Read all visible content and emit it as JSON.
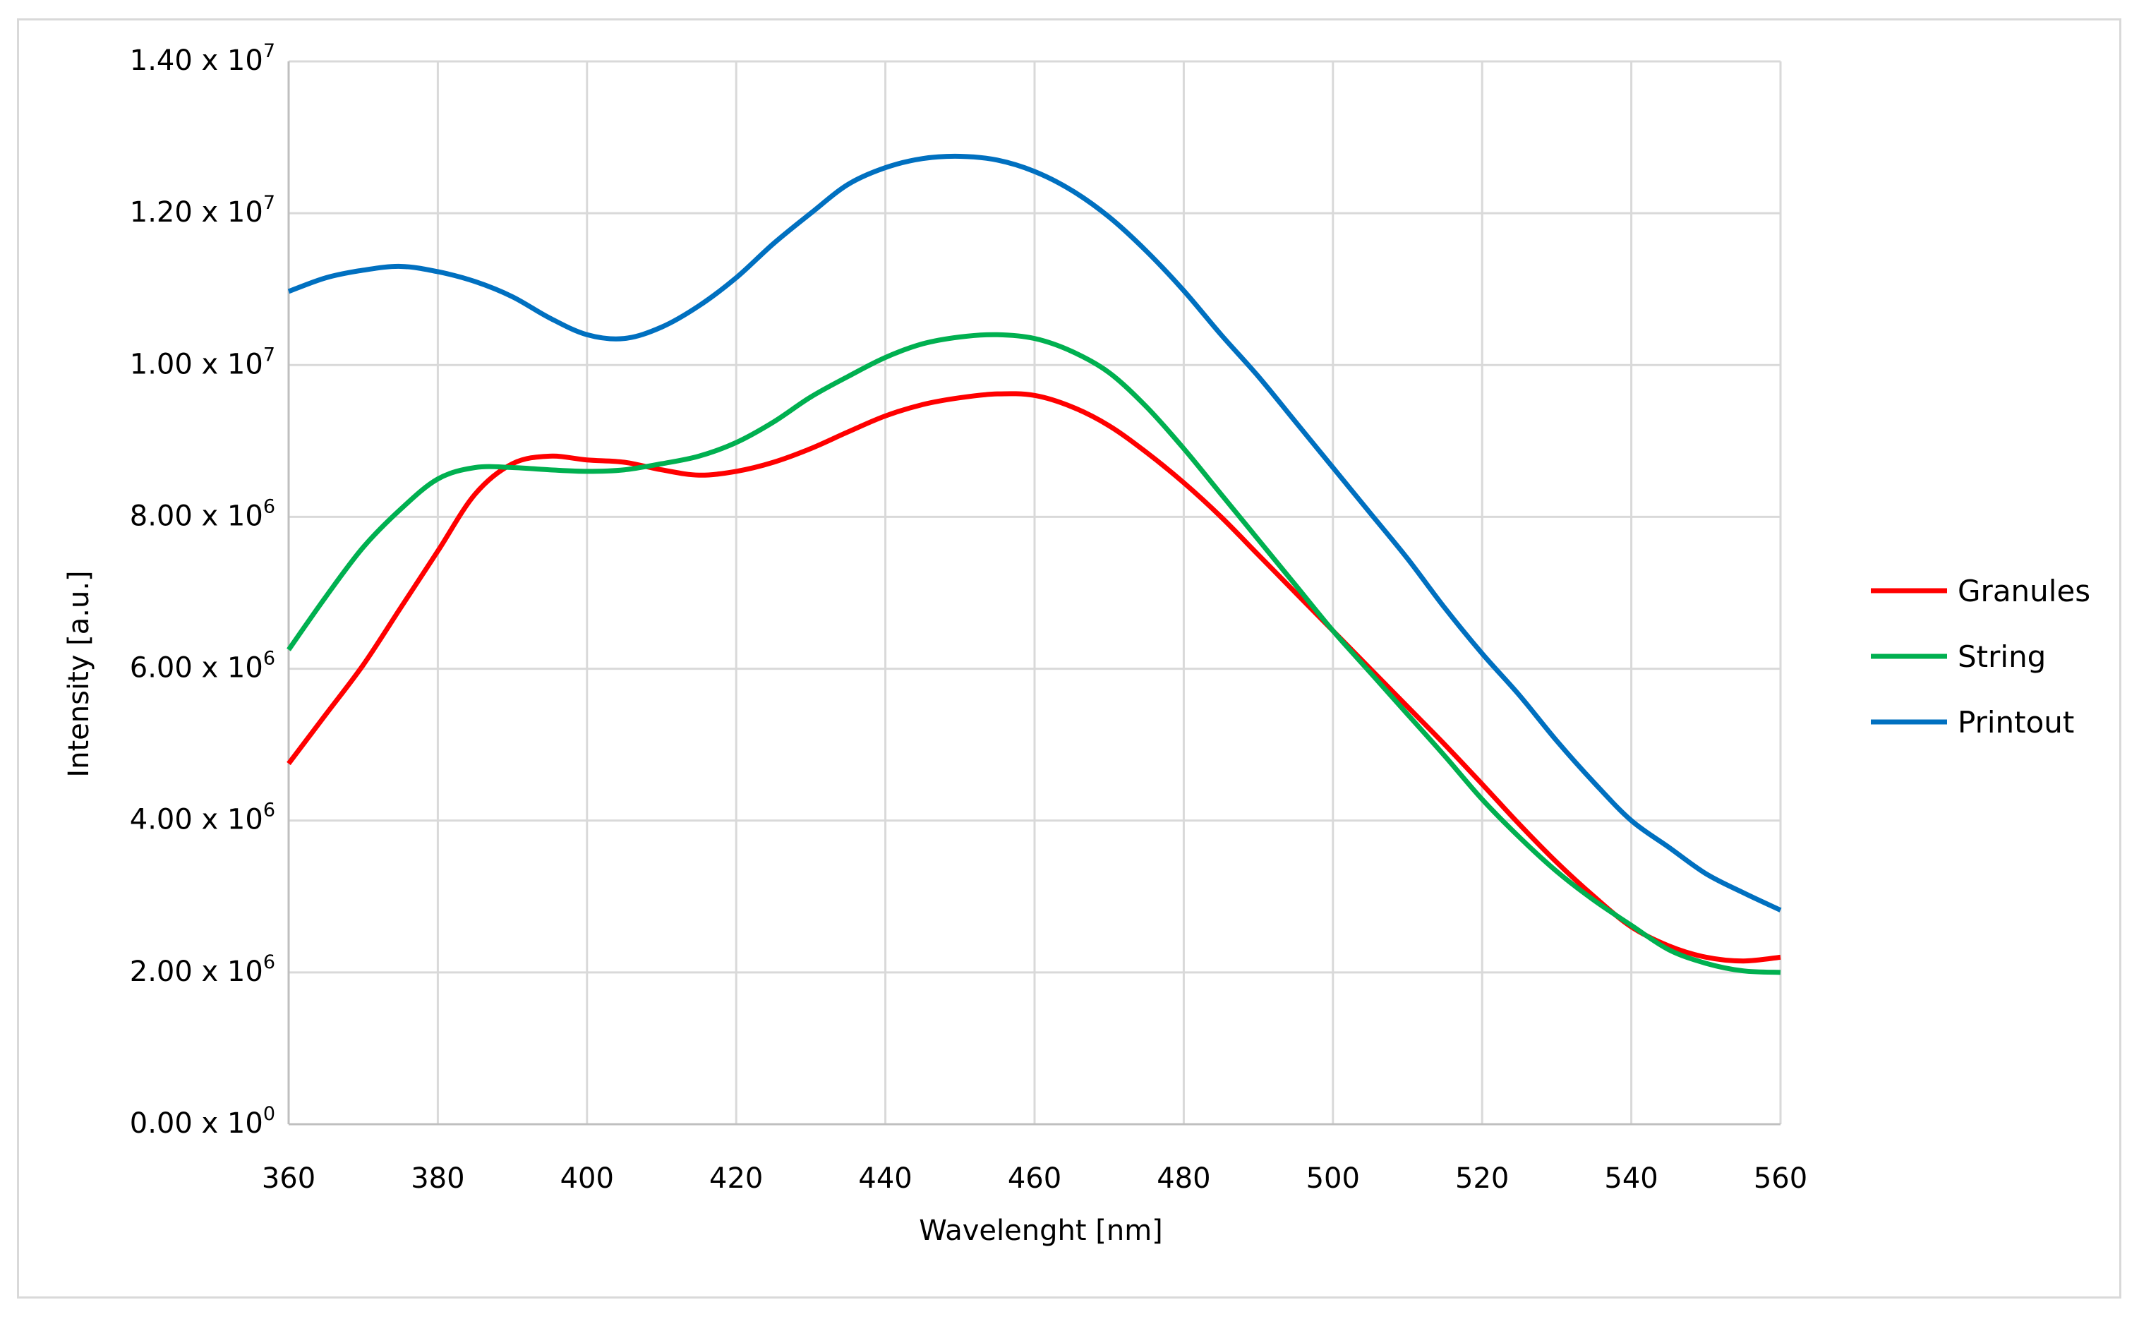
{
  "chart_data": {
    "type": "line",
    "title": "",
    "xlabel": "Wavelenght [nm]",
    "ylabel": "Intensity [a.u.]",
    "xlim": [
      360,
      560
    ],
    "ylim": [
      0,
      14000000
    ],
    "grid": true,
    "legend_position": "right",
    "x_ticks": [
      360,
      380,
      400,
      420,
      440,
      460,
      480,
      500,
      520,
      540,
      560
    ],
    "x_tick_labels": [
      "360",
      "380",
      "400",
      "420",
      "440",
      "460",
      "480",
      "500",
      "520",
      "540",
      "560"
    ],
    "y_ticks": [
      0,
      2000000,
      4000000,
      6000000,
      8000000,
      10000000,
      12000000,
      14000000
    ],
    "y_tick_labels": [
      {
        "mantissa": "0.00 x 10",
        "exp": "0"
      },
      {
        "mantissa": "2.00 x 10",
        "exp": "6"
      },
      {
        "mantissa": "4.00 x 10",
        "exp": "6"
      },
      {
        "mantissa": "6.00 x 10",
        "exp": "6"
      },
      {
        "mantissa": "8.00 x 10",
        "exp": "6"
      },
      {
        "mantissa": "1.00 x 10",
        "exp": "7"
      },
      {
        "mantissa": "1.20 x 10",
        "exp": "7"
      },
      {
        "mantissa": "1.40 x 10",
        "exp": "7"
      }
    ],
    "x": [
      360,
      365,
      370,
      375,
      380,
      385,
      390,
      395,
      400,
      405,
      410,
      415,
      420,
      425,
      430,
      435,
      440,
      445,
      450,
      455,
      460,
      465,
      470,
      475,
      480,
      485,
      490,
      495,
      500,
      505,
      510,
      515,
      520,
      525,
      530,
      535,
      540,
      545,
      550,
      555,
      560
    ],
    "series": [
      {
        "name": "Granules",
        "color": "#ff0000",
        "values": [
          4750000,
          5400000,
          6050000,
          6800000,
          7550000,
          8300000,
          8700000,
          8800000,
          8750000,
          8720000,
          8620000,
          8550000,
          8600000,
          8720000,
          8900000,
          9120000,
          9330000,
          9480000,
          9570000,
          9620000,
          9600000,
          9450000,
          9200000,
          8850000,
          8450000,
          8000000,
          7500000,
          7000000,
          6500000,
          6000000,
          5500000,
          5000000,
          4480000,
          3950000,
          3450000,
          3000000,
          2600000,
          2350000,
          2200000,
          2150000,
          2200000
        ]
      },
      {
        "name": "String",
        "color": "#00b050",
        "values": [
          6250000,
          6950000,
          7600000,
          8100000,
          8500000,
          8650000,
          8650000,
          8620000,
          8600000,
          8620000,
          8700000,
          8800000,
          8980000,
          9250000,
          9580000,
          9850000,
          10100000,
          10280000,
          10370000,
          10400000,
          10350000,
          10180000,
          9900000,
          9450000,
          8900000,
          8300000,
          7700000,
          7100000,
          6500000,
          5950000,
          5400000,
          4850000,
          4280000,
          3780000,
          3330000,
          2950000,
          2620000,
          2300000,
          2120000,
          2020000,
          2000000
        ]
      },
      {
        "name": "Printout",
        "color": "#0070c0",
        "values": [
          10970000,
          11150000,
          11250000,
          11300000,
          11230000,
          11100000,
          10900000,
          10620000,
          10400000,
          10350000,
          10500000,
          10780000,
          11150000,
          11600000,
          12000000,
          12380000,
          12600000,
          12720000,
          12750000,
          12700000,
          12550000,
          12300000,
          11950000,
          11500000,
          10980000,
          10400000,
          9850000,
          9250000,
          8650000,
          8050000,
          7450000,
          6800000,
          6200000,
          5650000,
          5050000,
          4500000,
          4000000,
          3650000,
          3300000,
          3050000,
          2820000
        ]
      }
    ]
  }
}
